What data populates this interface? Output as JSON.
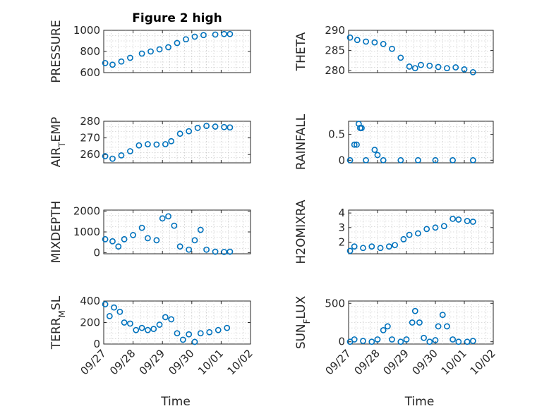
{
  "figure": {
    "title": "Figure 2 high"
  },
  "colors": {
    "marker": "#0072BD",
    "axis": "#262626",
    "grid": "#b8b8b8"
  },
  "chart_data": [
    {
      "id": "pressure",
      "type": "scatter",
      "title": "Figure 2 high",
      "ylabel": "PRESSURE",
      "ylim": [
        600,
        1000
      ],
      "yticks": [
        600,
        800,
        1000
      ],
      "xlim": [
        0,
        5
      ],
      "xticks": [
        0,
        1,
        2,
        3,
        4,
        5
      ],
      "grid": true,
      "points": [
        [
          0.05,
          690
        ],
        [
          0.3,
          675
        ],
        [
          0.6,
          705
        ],
        [
          0.9,
          740
        ],
        [
          1.3,
          780
        ],
        [
          1.6,
          800
        ],
        [
          1.9,
          820
        ],
        [
          2.2,
          840
        ],
        [
          2.5,
          880
        ],
        [
          2.8,
          915
        ],
        [
          3.1,
          940
        ],
        [
          3.4,
          955
        ],
        [
          3.8,
          960
        ],
        [
          4.1,
          965
        ],
        [
          4.3,
          965
        ]
      ]
    },
    {
      "id": "theta",
      "type": "scatter",
      "ylabel": "THETA",
      "ylim": [
        279.5,
        290
      ],
      "yticks": [
        280,
        285,
        290
      ],
      "xlim": [
        0,
        5
      ],
      "xticks": [
        0,
        1,
        2,
        3,
        4,
        5
      ],
      "grid": true,
      "points": [
        [
          0.05,
          288.2
        ],
        [
          0.3,
          287.6
        ],
        [
          0.6,
          287.2
        ],
        [
          0.9,
          287.0
        ],
        [
          1.2,
          286.6
        ],
        [
          1.5,
          285.4
        ],
        [
          1.8,
          283.2
        ],
        [
          2.1,
          281.0
        ],
        [
          2.3,
          280.6
        ],
        [
          2.5,
          281.4
        ],
        [
          2.8,
          281.2
        ],
        [
          3.1,
          280.9
        ],
        [
          3.4,
          280.6
        ],
        [
          3.7,
          280.8
        ],
        [
          4.0,
          280.3
        ],
        [
          4.3,
          279.6
        ]
      ]
    },
    {
      "id": "air_temp",
      "type": "scatter",
      "ylabel": "AIR_TEMP",
      "ylim": [
        255,
        280
      ],
      "yticks": [
        260,
        270,
        280
      ],
      "xlim": [
        0,
        5
      ],
      "xticks": [
        0,
        1,
        2,
        3,
        4,
        5
      ],
      "grid": true,
      "points": [
        [
          0.05,
          259
        ],
        [
          0.3,
          257.5
        ],
        [
          0.6,
          259.5
        ],
        [
          0.9,
          262
        ],
        [
          1.2,
          265.5
        ],
        [
          1.5,
          266.2
        ],
        [
          1.8,
          266
        ],
        [
          2.1,
          266.2
        ],
        [
          2.3,
          268
        ],
        [
          2.6,
          272.5
        ],
        [
          2.9,
          274
        ],
        [
          3.2,
          276
        ],
        [
          3.5,
          277.2
        ],
        [
          3.8,
          276.8
        ],
        [
          4.1,
          276.5
        ],
        [
          4.3,
          276.3
        ]
      ]
    },
    {
      "id": "rainfall",
      "type": "scatter",
      "ylabel": "RAINFALL",
      "ylim": [
        -0.05,
        0.75
      ],
      "yticks": [
        0,
        0.5
      ],
      "xlim": [
        0,
        5
      ],
      "xticks": [
        0,
        1,
        2,
        3,
        4,
        5
      ],
      "grid": true,
      "points": [
        [
          0.05,
          0
        ],
        [
          0.2,
          0.3
        ],
        [
          0.28,
          0.3
        ],
        [
          0.35,
          0.7
        ],
        [
          0.4,
          0.62
        ],
        [
          0.45,
          0.62
        ],
        [
          0.9,
          0.2
        ],
        [
          1.0,
          0.1
        ],
        [
          0.6,
          0
        ],
        [
          1.2,
          0
        ],
        [
          1.8,
          0
        ],
        [
          2.4,
          0
        ],
        [
          3.0,
          0
        ],
        [
          3.6,
          0
        ],
        [
          4.3,
          0
        ]
      ]
    },
    {
      "id": "mixdepth",
      "type": "scatter",
      "ylabel": "MIXDEPTH",
      "ylim": [
        -50,
        2050
      ],
      "yticks": [
        0,
        1000,
        2000
      ],
      "xlim": [
        0,
        5
      ],
      "xticks": [
        0,
        1,
        2,
        3,
        4,
        5
      ],
      "grid": true,
      "points": [
        [
          0.05,
          650
        ],
        [
          0.3,
          550
        ],
        [
          0.5,
          300
        ],
        [
          0.7,
          650
        ],
        [
          1.0,
          850
        ],
        [
          1.3,
          1200
        ],
        [
          1.5,
          700
        ],
        [
          1.8,
          600
        ],
        [
          2.0,
          1650
        ],
        [
          2.2,
          1750
        ],
        [
          2.4,
          1300
        ],
        [
          2.6,
          300
        ],
        [
          2.9,
          150
        ],
        [
          3.1,
          600
        ],
        [
          3.3,
          1100
        ],
        [
          3.5,
          150
        ],
        [
          3.8,
          50
        ],
        [
          4.1,
          40
        ],
        [
          4.3,
          50
        ]
      ]
    },
    {
      "id": "h2omixra",
      "type": "scatter",
      "ylabel": "H2OMIXRA",
      "ylim": [
        1.2,
        4.2
      ],
      "yticks": [
        2,
        3,
        4
      ],
      "xlim": [
        0,
        5
      ],
      "xticks": [
        0,
        1,
        2,
        3,
        4,
        5
      ],
      "grid": true,
      "points": [
        [
          0.05,
          1.4
        ],
        [
          0.2,
          1.7
        ],
        [
          0.5,
          1.6
        ],
        [
          0.8,
          1.7
        ],
        [
          1.1,
          1.6
        ],
        [
          1.4,
          1.7
        ],
        [
          1.6,
          1.8
        ],
        [
          1.9,
          2.2
        ],
        [
          2.1,
          2.5
        ],
        [
          2.4,
          2.6
        ],
        [
          2.7,
          2.9
        ],
        [
          3.0,
          3.0
        ],
        [
          3.3,
          3.1
        ],
        [
          3.6,
          3.6
        ],
        [
          3.8,
          3.55
        ],
        [
          4.1,
          3.45
        ],
        [
          4.3,
          3.4
        ]
      ]
    },
    {
      "id": "terr_msl",
      "type": "scatter",
      "ylabel": "TERR_MSL",
      "xlabel": "Time",
      "ylim": [
        0,
        400
      ],
      "yticks": [
        0,
        200,
        400
      ],
      "xlim": [
        0,
        5
      ],
      "xticks": [
        0,
        1,
        2,
        3,
        4,
        5
      ],
      "xticklabels": [
        "09/27",
        "09/28",
        "09/29",
        "09/30",
        "10/01",
        "10/02"
      ],
      "grid": true,
      "points": [
        [
          0.05,
          370
        ],
        [
          0.2,
          260
        ],
        [
          0.35,
          340
        ],
        [
          0.55,
          300
        ],
        [
          0.7,
          200
        ],
        [
          0.9,
          190
        ],
        [
          1.1,
          130
        ],
        [
          1.3,
          150
        ],
        [
          1.5,
          130
        ],
        [
          1.7,
          140
        ],
        [
          1.9,
          180
        ],
        [
          2.1,
          250
        ],
        [
          2.3,
          230
        ],
        [
          2.5,
          100
        ],
        [
          2.7,
          40
        ],
        [
          2.9,
          90
        ],
        [
          3.1,
          20
        ],
        [
          3.3,
          100
        ],
        [
          3.6,
          110
        ],
        [
          3.9,
          130
        ],
        [
          4.2,
          150
        ]
      ]
    },
    {
      "id": "sun_flux",
      "type": "scatter",
      "ylabel": "SUN_FLUX",
      "xlabel": "Time",
      "ylim": [
        -30,
        530
      ],
      "yticks": [
        0,
        500
      ],
      "xlim": [
        0,
        5
      ],
      "xticks": [
        0,
        1,
        2,
        3,
        4,
        5
      ],
      "xticklabels": [
        "09/27",
        "09/28",
        "09/29",
        "09/30",
        "10/01",
        "10/02"
      ],
      "grid": true,
      "points": [
        [
          0.05,
          0
        ],
        [
          0.2,
          30
        ],
        [
          0.5,
          10
        ],
        [
          0.8,
          0
        ],
        [
          1.0,
          30
        ],
        [
          1.2,
          150
        ],
        [
          1.35,
          200
        ],
        [
          1.5,
          30
        ],
        [
          1.8,
          0
        ],
        [
          2.0,
          30
        ],
        [
          2.2,
          250
        ],
        [
          2.3,
          400
        ],
        [
          2.45,
          250
        ],
        [
          2.6,
          50
        ],
        [
          2.8,
          0
        ],
        [
          3.0,
          20
        ],
        [
          3.1,
          200
        ],
        [
          3.25,
          350
        ],
        [
          3.4,
          200
        ],
        [
          3.6,
          30
        ],
        [
          3.8,
          0
        ],
        [
          4.1,
          0
        ],
        [
          4.3,
          10
        ]
      ]
    }
  ]
}
